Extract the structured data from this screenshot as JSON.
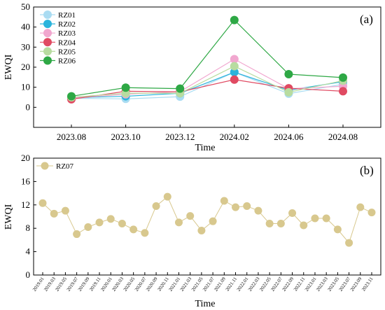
{
  "chart_data": [
    {
      "type": "line",
      "panel_label": "(a)",
      "xlabel": "Time",
      "ylabel": "EWQI",
      "categories": [
        "2023.08",
        "2023.10",
        "2023.12",
        "2024.02",
        "2024.06",
        "2024.08"
      ],
      "ylim": [
        -10,
        50
      ],
      "yticks": [
        0,
        10,
        20,
        30,
        40,
        50
      ],
      "legend_position": "top-left",
      "series": [
        {
          "name": "RZ01",
          "color": "#aadcf2",
          "values": [
            4.5,
            4.2,
            5.3,
            17.5,
            6.8,
            11.5
          ]
        },
        {
          "name": "RZ02",
          "color": "#2bb4dc",
          "values": [
            4.8,
            5.5,
            7.0,
            17.5,
            8.5,
            12.8
          ]
        },
        {
          "name": "RZ03",
          "color": "#f1a7cf",
          "values": [
            4.6,
            6.5,
            7.8,
            24.0,
            9.3,
            10.5
          ]
        },
        {
          "name": "RZ04",
          "color": "#e04a62",
          "values": [
            4.0,
            8.0,
            7.7,
            13.8,
            9.5,
            8.0
          ]
        },
        {
          "name": "RZ05",
          "color": "#b8dca0",
          "values": [
            5.0,
            7.0,
            7.0,
            20.5,
            7.5,
            13.3
          ]
        },
        {
          "name": "RZ06",
          "color": "#2ea845",
          "values": [
            5.5,
            9.8,
            9.3,
            43.5,
            16.5,
            14.8
          ]
        }
      ]
    },
    {
      "type": "line",
      "panel_label": "(b)",
      "xlabel": "Time",
      "ylabel": "EWQI",
      "ylim": [
        0,
        20
      ],
      "yticks": [
        0,
        4,
        8,
        12,
        16,
        20
      ],
      "legend_position": "top-left",
      "categories": [
        "2019.01",
        "2019.03",
        "2019.05",
        "2019.07",
        "2019.09",
        "2019.11",
        "2020.01",
        "2020.03",
        "2020.05",
        "2020.07",
        "2020.09",
        "2020.11",
        "2021.01",
        "2021.03",
        "2021.05",
        "2021.07",
        "2021.09",
        "2021.11",
        "2022.01",
        "2022.03",
        "2022.05",
        "2022.07",
        "2022.09",
        "2022.11",
        "2023.01",
        "2023.03",
        "2023.05",
        "2023.07",
        "2023.09",
        "2023.11"
      ],
      "series": [
        {
          "name": "RZ07",
          "color": "#d8c88e",
          "values": [
            12.3,
            10.5,
            11.0,
            7.0,
            8.2,
            9.0,
            9.6,
            8.8,
            7.8,
            7.2,
            11.8,
            13.4,
            9.0,
            10.1,
            7.6,
            9.2,
            12.7,
            11.6,
            11.8,
            11.0,
            8.8,
            8.8,
            10.6,
            8.5,
            9.7,
            9.7,
            7.8,
            5.5,
            11.6,
            10.7
          ]
        }
      ]
    }
  ]
}
